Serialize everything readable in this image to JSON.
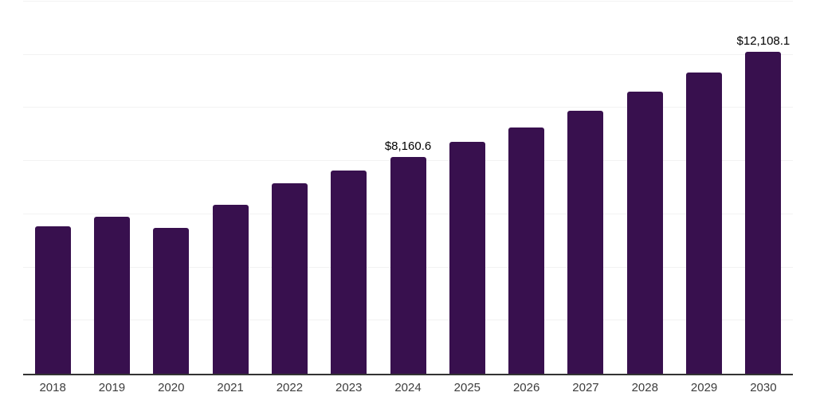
{
  "chart_data": {
    "type": "bar",
    "title": "",
    "xlabel": "",
    "ylabel": "",
    "categories": [
      "2018",
      "2019",
      "2020",
      "2021",
      "2022",
      "2023",
      "2024",
      "2025",
      "2026",
      "2027",
      "2028",
      "2029",
      "2030"
    ],
    "values": [
      5560,
      5900,
      5490,
      6360,
      7170,
      7640,
      8160.6,
      8720,
      9260,
      9890,
      10610,
      11330,
      12108.1
    ],
    "value_labels": [
      "",
      "",
      "",
      "",
      "",
      "",
      "$8,160.6",
      "",
      "",
      "",
      "",
      "",
      "$12,108.1"
    ],
    "ylim": [
      0,
      14000
    ],
    "grid_step": 2000,
    "grid": "horizontal gridlines, no y tick labels",
    "legend": "none",
    "colors": {
      "bar": "#38104e",
      "gridline": "#f2f2f2",
      "axis_line": "#333333",
      "tick_label": "#3d3d3d",
      "value_label": "#000000",
      "background": "#ffffff"
    }
  }
}
